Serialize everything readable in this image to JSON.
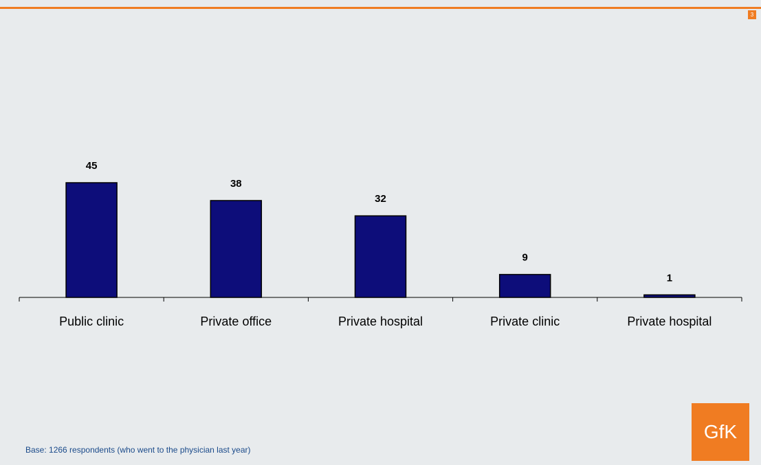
{
  "page_number": "3",
  "footnote": "Base: 1266 respondents (who went to the physician last year)",
  "logo_text": "GfK",
  "colors": {
    "bar": "#0d0d7a",
    "accent": "#f07c22",
    "background": "#e8ebed"
  },
  "chart_data": {
    "type": "bar",
    "categories": [
      "Public clinic",
      "Private office",
      "Private hospital",
      "Private clinic",
      "Private hospital"
    ],
    "values": [
      45,
      38,
      32,
      9,
      1
    ],
    "value_labels": [
      "45",
      "38",
      "32",
      "9",
      "1"
    ],
    "title": "",
    "xlabel": "",
    "ylabel": "",
    "ylim": [
      0,
      45
    ],
    "grid": false,
    "legend": "none"
  }
}
